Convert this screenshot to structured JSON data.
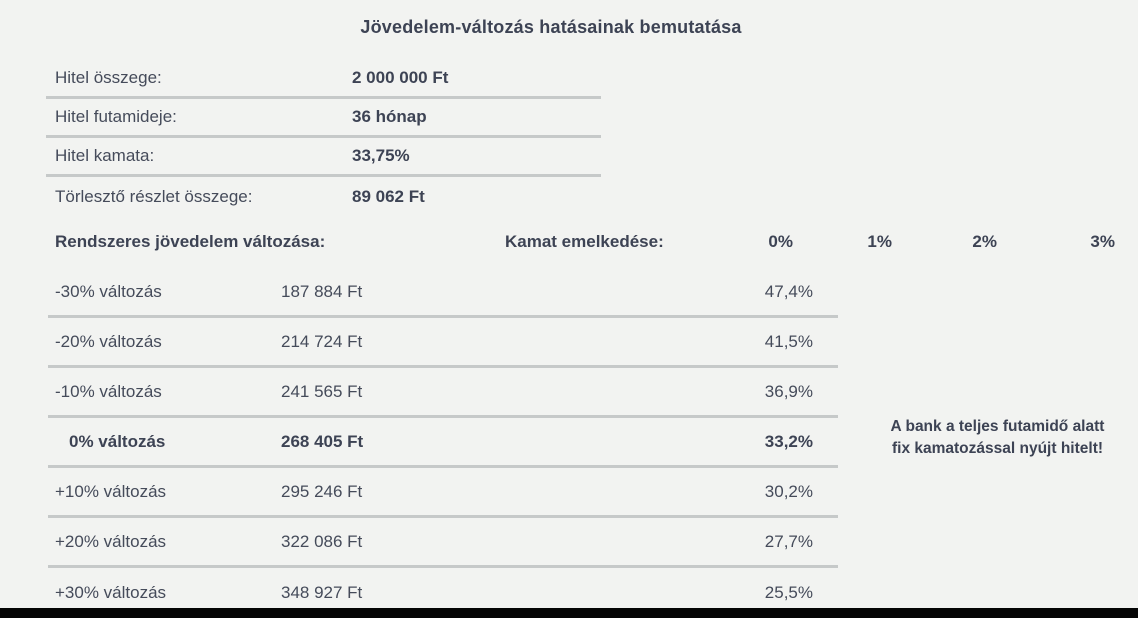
{
  "title": "Jövedelem-változás hatásainak bemutatása",
  "loan_info": {
    "rows": [
      {
        "label": "Hitel összege:",
        "value": "2 000 000 Ft"
      },
      {
        "label": "Hitel futamideje:",
        "value": "36 hónap"
      },
      {
        "label": "Hitel kamata:",
        "value": "33,75%"
      },
      {
        "label": "Törlesztő részlet összege:",
        "value": "89 062 Ft"
      }
    ]
  },
  "table": {
    "income_change_header": "Rendszeres jövedelem változása:",
    "rate_increase_header": "Kamat emelkedése:",
    "rate_columns": [
      "0%",
      "1%",
      "2%",
      "3%"
    ],
    "rows": [
      {
        "change": "-30% változás",
        "income": "187 884 Ft",
        "payment_ratio": "47,4%"
      },
      {
        "change": "-20% változás",
        "income": "214 724 Ft",
        "payment_ratio": "41,5%"
      },
      {
        "change": "-10% változás",
        "income": "241 565 Ft",
        "payment_ratio": "36,9%"
      },
      {
        "change": "0% változás",
        "income": "268 405 Ft",
        "payment_ratio": "33,2%"
      },
      {
        "change": "+10% változás",
        "income": "295 246 Ft",
        "payment_ratio": "30,2%"
      },
      {
        "change": "+20% változás",
        "income": "322 086 Ft",
        "payment_ratio": "27,7%"
      },
      {
        "change": "+30% változás",
        "income": "348 927 Ft",
        "payment_ratio": "25,5%"
      }
    ]
  },
  "note": {
    "line1": "A bank a teljes futamidő alatt",
    "line2": "fix kamatozással nyújt hitelt!"
  },
  "colors": {
    "text": "#3d4354",
    "background": "#f2f3f1",
    "separator": "#c6c9c9",
    "bottom_bar": "#050505"
  }
}
